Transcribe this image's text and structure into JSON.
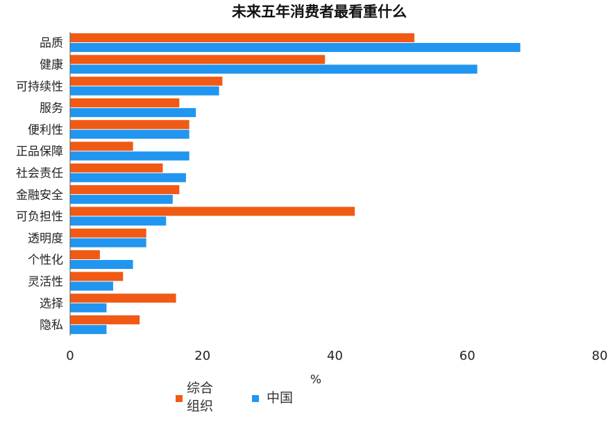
{
  "chart_data": {
    "type": "bar",
    "orientation": "horizontal",
    "title": "未来五年消费者最看重什么",
    "xlabel": "%",
    "ylabel": "",
    "xlim": [
      0,
      80
    ],
    "xticks": [
      0,
      20,
      40,
      60,
      80
    ],
    "grid": false,
    "legend_position": "bottom",
    "categories": [
      "品质",
      "健康",
      "可持续性",
      "服务",
      "便利性",
      "正品保障",
      "社会责任",
      "金融安全",
      "可负担性",
      "透明度",
      "个性化",
      "灵活性",
      "选择",
      "隐私"
    ],
    "series": [
      {
        "name": "综合组织",
        "color": "#f05a14",
        "values": [
          52,
          38.5,
          23,
          16.5,
          18,
          9.5,
          14,
          16.5,
          43,
          11.5,
          4.5,
          8,
          16,
          10.5
        ]
      },
      {
        "name": "中国",
        "color": "#2196f0",
        "values": [
          68,
          61.5,
          22.5,
          19,
          18,
          18,
          17.5,
          15.5,
          14.5,
          11.5,
          9.5,
          6.5,
          5.5,
          5.5
        ]
      }
    ]
  }
}
